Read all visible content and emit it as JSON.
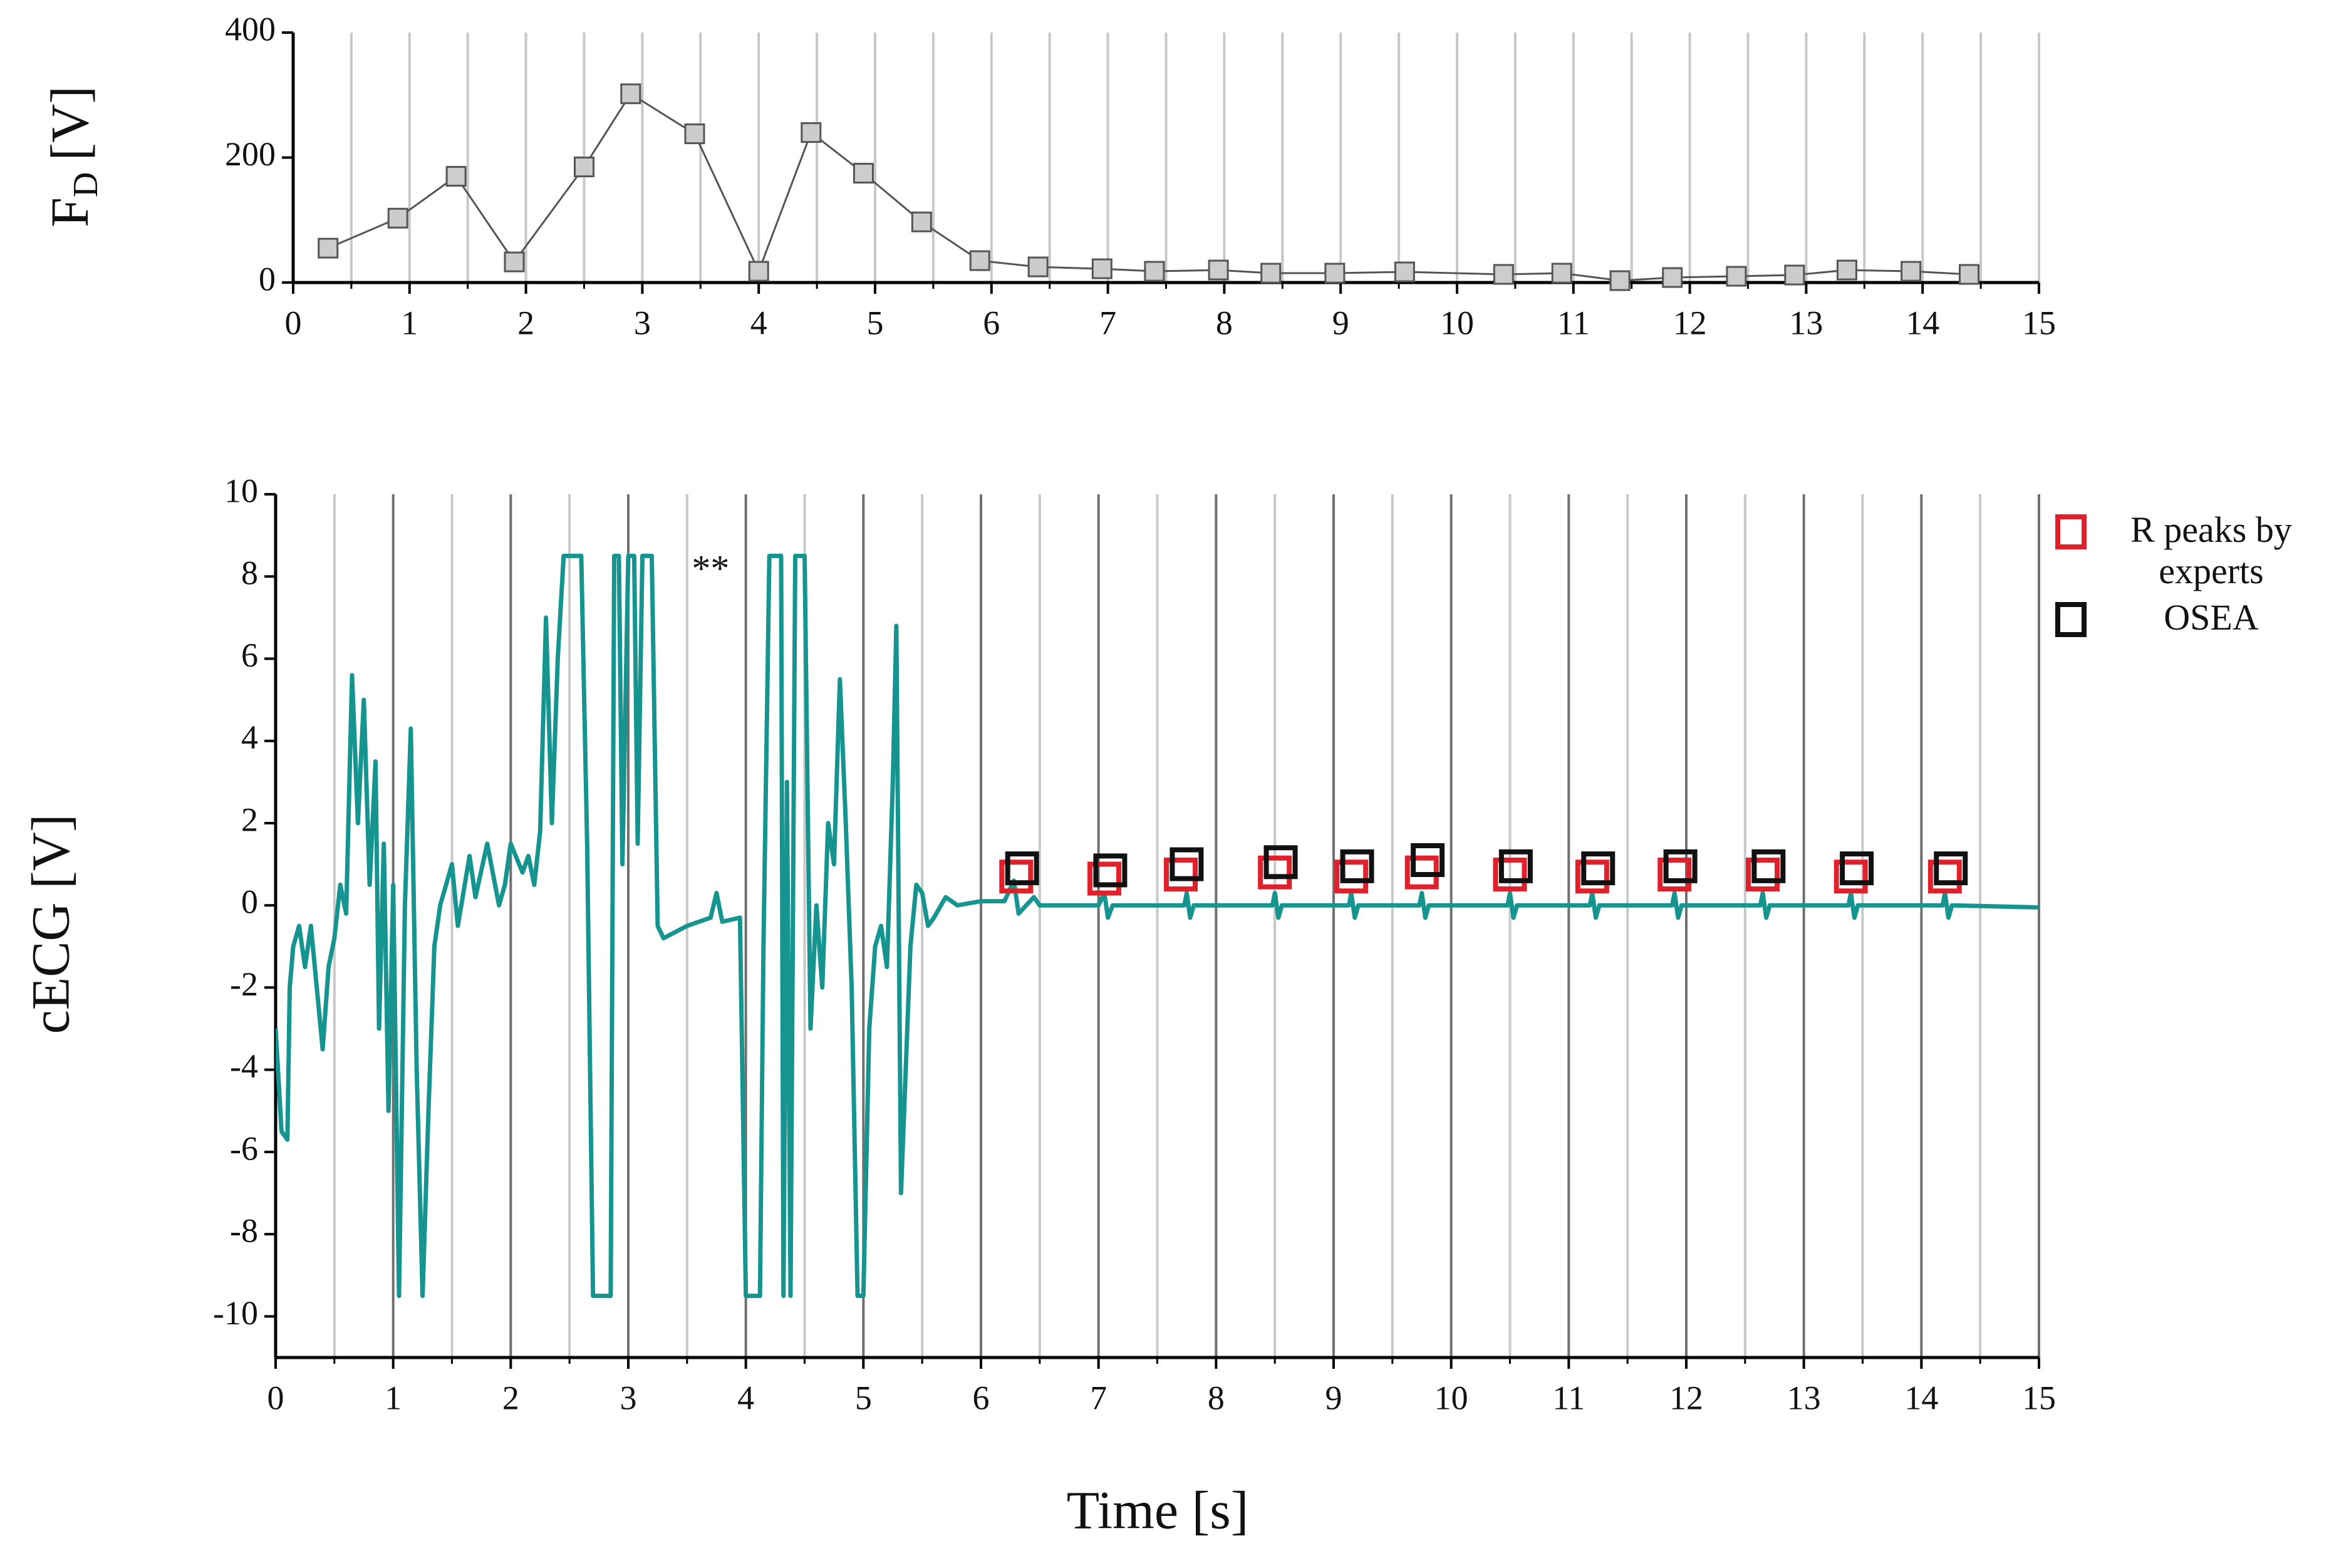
{
  "chart_data": [
    {
      "type": "line",
      "ylabel": {
        "base": "F",
        "subscript": "D",
        "unit": "[V]"
      },
      "xlim": [
        0,
        15
      ],
      "xticks": [
        0,
        1,
        2,
        3,
        4,
        5,
        6,
        7,
        8,
        9,
        10,
        11,
        12,
        13,
        14,
        15
      ],
      "xminorticks": [
        0.5,
        1.5,
        2.5,
        3.5,
        4.5,
        5.5,
        6.5,
        7.5,
        8.5,
        9.5,
        10.5,
        11.5,
        12.5,
        13.5,
        14.5
      ],
      "ylim": [
        0,
        400
      ],
      "yticks": [
        0,
        200,
        400
      ],
      "grid": true,
      "grid_color": "#c8c8c8",
      "minor_grid_color": "#c8c8c8",
      "series": [
        {
          "style": "line+markers",
          "color": "#555555",
          "marker_fill": "#cccccc",
          "x": [
            0.3,
            0.9,
            1.4,
            1.9,
            2.5,
            2.9,
            3.45,
            4.0,
            4.45,
            4.9,
            5.4,
            5.9,
            6.4,
            6.95,
            7.4,
            7.95,
            8.4,
            8.95,
            9.55,
            10.4,
            10.9,
            11.4,
            11.85,
            12.4,
            12.9,
            13.35,
            13.9,
            14.4
          ],
          "values": [
            55,
            103,
            170,
            33,
            185,
            302,
            238,
            18,
            240,
            175,
            97,
            35,
            25,
            22,
            18,
            20,
            15,
            15,
            17,
            13,
            15,
            3,
            8,
            10,
            12,
            20,
            18,
            13
          ]
        }
      ]
    },
    {
      "type": "line",
      "xlabel": "Time [s]",
      "ylabel": "cECG [V]",
      "xlim": [
        0,
        15
      ],
      "xticks": [
        0,
        1,
        2,
        3,
        4,
        5,
        6,
        7,
        8,
        9,
        10,
        11,
        12,
        13,
        14,
        15
      ],
      "xminorticks": [
        0.5,
        1.5,
        2.5,
        3.5,
        4.5,
        5.5,
        6.5,
        7.5,
        8.5,
        9.5,
        10.5,
        11.5,
        12.5,
        13.5,
        14.5
      ],
      "ylim": [
        -11,
        10
      ],
      "yticks": [
        -10,
        -8,
        -6,
        -4,
        -2,
        0,
        2,
        4,
        6,
        8,
        10
      ],
      "grid": true,
      "grid_color": "#707070",
      "minor_grid_color": "#c8c8c8",
      "legend": "upper right",
      "annotations": [
        {
          "text": "**",
          "x": 3.7,
          "y": 8.1
        }
      ],
      "series": [
        {
          "style": "line",
          "color": "#16948f",
          "x": [
            0,
            0.05,
            0.1,
            0.12,
            0.15,
            0.2,
            0.25,
            0.3,
            0.35,
            0.4,
            0.45,
            0.5,
            0.55,
            0.6,
            0.65,
            0.7,
            0.75,
            0.8,
            0.85,
            0.88,
            0.92,
            0.96,
            1.0,
            1.05,
            1.1,
            1.15,
            1.2,
            1.25,
            1.3,
            1.35,
            1.4,
            1.5,
            1.55,
            1.65,
            1.7,
            1.8,
            1.9,
            1.95,
            2.0,
            2.1,
            2.15,
            2.2,
            2.25,
            2.3,
            2.35,
            2.4,
            2.45,
            2.6,
            2.65,
            2.7,
            2.85,
            2.88,
            2.92,
            2.95,
            3.0,
            3.05,
            3.08,
            3.12,
            3.2,
            3.25,
            3.3,
            3.5,
            3.7,
            3.75,
            3.8,
            3.95,
            4.0,
            4.12,
            4.15,
            4.2,
            4.3,
            4.32,
            4.35,
            4.38,
            4.42,
            4.5,
            4.55,
            4.6,
            4.65,
            4.7,
            4.75,
            4.8,
            4.85,
            4.9,
            4.95,
            5.0,
            5.05,
            5.1,
            5.15,
            5.2,
            5.25,
            5.28,
            5.32,
            5.4,
            5.45,
            5.5,
            5.55,
            5.6,
            5.7,
            5.8,
            6.0,
            6.2,
            6.28,
            6.32,
            6.45,
            6.5,
            7.0,
            7.05,
            7.08,
            7.12,
            7.73,
            7.75,
            7.78,
            7.81,
            8.48,
            8.5,
            8.53,
            8.56,
            9.13,
            9.15,
            9.18,
            9.21,
            9.73,
            9.75,
            9.78,
            9.81,
            10.48,
            10.5,
            10.53,
            10.56,
            11.18,
            11.2,
            11.23,
            11.26,
            11.88,
            11.9,
            11.93,
            11.96,
            12.63,
            12.65,
            12.68,
            12.71,
            13.38,
            13.4,
            13.43,
            13.46,
            14.18,
            14.2,
            14.23,
            14.26,
            15.0
          ],
          "values": [
            -3,
            -5.5,
            -5.7,
            -2,
            -1,
            -0.5,
            -1.5,
            -0.5,
            -2,
            -3.5,
            -1.5,
            -0.8,
            0.5,
            -0.2,
            5.6,
            2,
            5,
            0.5,
            3.5,
            -3,
            1.5,
            -5,
            0.5,
            -9.5,
            0,
            4.3,
            -4,
            -9.5,
            -5,
            -1,
            0,
            1,
            -0.5,
            1.2,
            0.2,
            1.5,
            0,
            0.5,
            1.5,
            0.8,
            1.2,
            0.5,
            1.8,
            7,
            2,
            6,
            8.5,
            8.5,
            1.5,
            -9.5,
            -9.5,
            8.5,
            8.5,
            1,
            8.5,
            8.5,
            1.5,
            8.5,
            8.5,
            -0.5,
            -0.8,
            -0.5,
            -0.3,
            0.3,
            -0.4,
            -0.3,
            -9.5,
            -9.5,
            -1,
            8.5,
            8.5,
            -9.5,
            3,
            -9.5,
            8.5,
            8.5,
            -3,
            0,
            -2,
            2,
            1,
            5.5,
            2,
            -2,
            -9.5,
            -9.5,
            -3,
            -1,
            -0.5,
            -1.5,
            3,
            6.8,
            -7,
            -1,
            0.5,
            0.3,
            -0.5,
            -0.3,
            0.2,
            0,
            0.1,
            0.1,
            0.6,
            -0.2,
            0.2,
            0,
            0,
            0.3,
            -0.3,
            0,
            0,
            0.3,
            -0.3,
            0,
            0,
            0.3,
            -0.3,
            0,
            0,
            0.3,
            -0.3,
            0,
            0,
            0.3,
            -0.3,
            0,
            0,
            0.3,
            -0.3,
            0,
            0,
            0.3,
            -0.3,
            0,
            0,
            0.3,
            -0.3,
            0,
            0,
            0.3,
            -0.3,
            0,
            0,
            0.3,
            -0.3,
            0,
            0,
            0.3,
            -0.3,
            0,
            -0.05
          ]
        },
        {
          "style": "markers",
          "name": "R peaks by experts",
          "color": "#e0202a",
          "x": [
            6.3,
            7.05,
            7.7,
            8.5,
            9.15,
            9.75,
            10.5,
            11.2,
            11.9,
            12.65,
            13.4,
            14.2
          ],
          "values": [
            0.7,
            0.65,
            0.75,
            0.8,
            0.7,
            0.8,
            0.75,
            0.7,
            0.75,
            0.75,
            0.7,
            0.7
          ]
        },
        {
          "style": "markers",
          "name": "OSEA",
          "color": "#111111",
          "x": [
            6.35,
            7.1,
            7.75,
            8.55,
            9.2,
            9.8,
            10.55,
            11.25,
            11.95,
            12.7,
            13.45,
            14.25
          ],
          "values": [
            0.9,
            0.85,
            1.0,
            1.05,
            0.95,
            1.1,
            0.95,
            0.9,
            0.95,
            0.95,
            0.9,
            0.9
          ]
        }
      ]
    }
  ]
}
